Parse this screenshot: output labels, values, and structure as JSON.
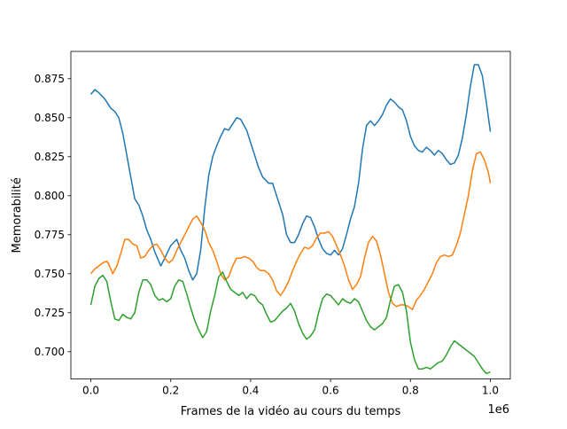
{
  "chart_data": {
    "type": "line",
    "title": "",
    "xlabel": "Frames de la vidéo au cours du temps",
    "ylabel": "Memorabilité",
    "x_offset_label": "1e6",
    "xlim": [
      -0.05,
      1.05
    ],
    "ylim": [
      0.6825,
      0.8925
    ],
    "x_ticks": [
      0.0,
      0.2,
      0.4,
      0.6,
      0.8,
      1.0
    ],
    "x_tick_labels": [
      "0.0",
      "0.2",
      "0.4",
      "0.6",
      "0.8",
      "1.0"
    ],
    "y_ticks": [
      0.7,
      0.725,
      0.75,
      0.775,
      0.8,
      0.825,
      0.85,
      0.875
    ],
    "y_tick_labels": [
      "0.700",
      "0.725",
      "0.750",
      "0.775",
      "0.800",
      "0.825",
      "0.850",
      "0.875"
    ],
    "grid": false,
    "series": [
      {
        "color": "#1f77b4",
        "points": [
          [
            0.0,
            0.865
          ],
          [
            0.01,
            0.868
          ],
          [
            0.02,
            0.866
          ],
          [
            0.035,
            0.862
          ],
          [
            0.05,
            0.856
          ],
          [
            0.06,
            0.854
          ],
          [
            0.07,
            0.85
          ],
          [
            0.08,
            0.84
          ],
          [
            0.09,
            0.826
          ],
          [
            0.1,
            0.812
          ],
          [
            0.11,
            0.798
          ],
          [
            0.12,
            0.794
          ],
          [
            0.13,
            0.787
          ],
          [
            0.14,
            0.778
          ],
          [
            0.15,
            0.772
          ],
          [
            0.16,
            0.764
          ],
          [
            0.175,
            0.755
          ],
          [
            0.185,
            0.76
          ],
          [
            0.2,
            0.768
          ],
          [
            0.215,
            0.772
          ],
          [
            0.225,
            0.765
          ],
          [
            0.235,
            0.76
          ],
          [
            0.245,
            0.752
          ],
          [
            0.255,
            0.746
          ],
          [
            0.265,
            0.75
          ],
          [
            0.275,
            0.765
          ],
          [
            0.285,
            0.792
          ],
          [
            0.295,
            0.813
          ],
          [
            0.305,
            0.825
          ],
          [
            0.315,
            0.832
          ],
          [
            0.325,
            0.838
          ],
          [
            0.335,
            0.843
          ],
          [
            0.345,
            0.842
          ],
          [
            0.355,
            0.846
          ],
          [
            0.365,
            0.85
          ],
          [
            0.375,
            0.849
          ],
          [
            0.39,
            0.842
          ],
          [
            0.4,
            0.834
          ],
          [
            0.41,
            0.826
          ],
          [
            0.42,
            0.818
          ],
          [
            0.43,
            0.812
          ],
          [
            0.445,
            0.808
          ],
          [
            0.455,
            0.808
          ],
          [
            0.465,
            0.8
          ],
          [
            0.48,
            0.788
          ],
          [
            0.49,
            0.775
          ],
          [
            0.5,
            0.77
          ],
          [
            0.51,
            0.77
          ],
          [
            0.52,
            0.775
          ],
          [
            0.53,
            0.782
          ],
          [
            0.54,
            0.787
          ],
          [
            0.55,
            0.786
          ],
          [
            0.56,
            0.78
          ],
          [
            0.57,
            0.772
          ],
          [
            0.58,
            0.766
          ],
          [
            0.59,
            0.763
          ],
          [
            0.6,
            0.762
          ],
          [
            0.61,
            0.765
          ],
          [
            0.62,
            0.762
          ],
          [
            0.63,
            0.766
          ],
          [
            0.64,
            0.775
          ],
          [
            0.65,
            0.785
          ],
          [
            0.66,
            0.793
          ],
          [
            0.67,
            0.808
          ],
          [
            0.68,
            0.83
          ],
          [
            0.69,
            0.845
          ],
          [
            0.7,
            0.848
          ],
          [
            0.71,
            0.845
          ],
          [
            0.72,
            0.848
          ],
          [
            0.73,
            0.852
          ],
          [
            0.74,
            0.858
          ],
          [
            0.75,
            0.862
          ],
          [
            0.76,
            0.86
          ],
          [
            0.77,
            0.857
          ],
          [
            0.78,
            0.855
          ],
          [
            0.79,
            0.848
          ],
          [
            0.8,
            0.838
          ],
          [
            0.81,
            0.832
          ],
          [
            0.82,
            0.829
          ],
          [
            0.83,
            0.828
          ],
          [
            0.84,
            0.831
          ],
          [
            0.85,
            0.829
          ],
          [
            0.86,
            0.826
          ],
          [
            0.87,
            0.829
          ],
          [
            0.88,
            0.827
          ],
          [
            0.89,
            0.823
          ],
          [
            0.9,
            0.82
          ],
          [
            0.91,
            0.821
          ],
          [
            0.92,
            0.826
          ],
          [
            0.93,
            0.837
          ],
          [
            0.94,
            0.852
          ],
          [
            0.95,
            0.87
          ],
          [
            0.96,
            0.884
          ],
          [
            0.97,
            0.884
          ],
          [
            0.98,
            0.877
          ],
          [
            0.99,
            0.86
          ],
          [
            1.0,
            0.841
          ]
        ]
      },
      {
        "color": "#ff7f0e",
        "points": [
          [
            0.0,
            0.75
          ],
          [
            0.01,
            0.753
          ],
          [
            0.02,
            0.755
          ],
          [
            0.03,
            0.757
          ],
          [
            0.04,
            0.758
          ],
          [
            0.045,
            0.756
          ],
          [
            0.055,
            0.75
          ],
          [
            0.065,
            0.755
          ],
          [
            0.075,
            0.763
          ],
          [
            0.085,
            0.772
          ],
          [
            0.095,
            0.772
          ],
          [
            0.105,
            0.769
          ],
          [
            0.115,
            0.768
          ],
          [
            0.125,
            0.76
          ],
          [
            0.135,
            0.761
          ],
          [
            0.145,
            0.765
          ],
          [
            0.155,
            0.768
          ],
          [
            0.165,
            0.769
          ],
          [
            0.175,
            0.765
          ],
          [
            0.185,
            0.76
          ],
          [
            0.195,
            0.757
          ],
          [
            0.205,
            0.759
          ],
          [
            0.215,
            0.765
          ],
          [
            0.225,
            0.77
          ],
          [
            0.235,
            0.775
          ],
          [
            0.245,
            0.78
          ],
          [
            0.255,
            0.785
          ],
          [
            0.265,
            0.787
          ],
          [
            0.275,
            0.783
          ],
          [
            0.285,
            0.778
          ],
          [
            0.295,
            0.77
          ],
          [
            0.305,
            0.765
          ],
          [
            0.315,
            0.758
          ],
          [
            0.325,
            0.75
          ],
          [
            0.335,
            0.746
          ],
          [
            0.345,
            0.748
          ],
          [
            0.355,
            0.755
          ],
          [
            0.365,
            0.76
          ],
          [
            0.375,
            0.76
          ],
          [
            0.385,
            0.761
          ],
          [
            0.395,
            0.76
          ],
          [
            0.405,
            0.758
          ],
          [
            0.415,
            0.754
          ],
          [
            0.425,
            0.752
          ],
          [
            0.435,
            0.752
          ],
          [
            0.445,
            0.75
          ],
          [
            0.455,
            0.746
          ],
          [
            0.465,
            0.739
          ],
          [
            0.475,
            0.736
          ],
          [
            0.485,
            0.74
          ],
          [
            0.495,
            0.745
          ],
          [
            0.505,
            0.752
          ],
          [
            0.515,
            0.758
          ],
          [
            0.525,
            0.763
          ],
          [
            0.535,
            0.767
          ],
          [
            0.545,
            0.766
          ],
          [
            0.555,
            0.768
          ],
          [
            0.565,
            0.773
          ],
          [
            0.575,
            0.776
          ],
          [
            0.585,
            0.776
          ],
          [
            0.595,
            0.777
          ],
          [
            0.605,
            0.774
          ],
          [
            0.615,
            0.768
          ],
          [
            0.625,
            0.762
          ],
          [
            0.635,
            0.755
          ],
          [
            0.645,
            0.746
          ],
          [
            0.655,
            0.74
          ],
          [
            0.665,
            0.743
          ],
          [
            0.675,
            0.748
          ],
          [
            0.685,
            0.76
          ],
          [
            0.695,
            0.77
          ],
          [
            0.705,
            0.774
          ],
          [
            0.715,
            0.771
          ],
          [
            0.725,
            0.762
          ],
          [
            0.735,
            0.75
          ],
          [
            0.745,
            0.738
          ],
          [
            0.755,
            0.731
          ],
          [
            0.765,
            0.729
          ],
          [
            0.775,
            0.73
          ],
          [
            0.785,
            0.73
          ],
          [
            0.795,
            0.729
          ],
          [
            0.805,
            0.727
          ],
          [
            0.815,
            0.733
          ],
          [
            0.825,
            0.736
          ],
          [
            0.835,
            0.74
          ],
          [
            0.845,
            0.745
          ],
          [
            0.855,
            0.75
          ],
          [
            0.865,
            0.757
          ],
          [
            0.875,
            0.761
          ],
          [
            0.885,
            0.762
          ],
          [
            0.895,
            0.761
          ],
          [
            0.905,
            0.762
          ],
          [
            0.915,
            0.768
          ],
          [
            0.925,
            0.776
          ],
          [
            0.935,
            0.788
          ],
          [
            0.945,
            0.8
          ],
          [
            0.955,
            0.816
          ],
          [
            0.965,
            0.827
          ],
          [
            0.975,
            0.828
          ],
          [
            0.985,
            0.823
          ],
          [
            0.995,
            0.815
          ],
          [
            1.0,
            0.808
          ]
        ]
      },
      {
        "color": "#2ca02c",
        "points": [
          [
            0.0,
            0.73
          ],
          [
            0.01,
            0.742
          ],
          [
            0.02,
            0.747
          ],
          [
            0.03,
            0.749
          ],
          [
            0.04,
            0.745
          ],
          [
            0.05,
            0.732
          ],
          [
            0.06,
            0.721
          ],
          [
            0.07,
            0.72
          ],
          [
            0.08,
            0.724
          ],
          [
            0.09,
            0.722
          ],
          [
            0.1,
            0.721
          ],
          [
            0.11,
            0.725
          ],
          [
            0.12,
            0.738
          ],
          [
            0.13,
            0.746
          ],
          [
            0.14,
            0.746
          ],
          [
            0.15,
            0.743
          ],
          [
            0.16,
            0.736
          ],
          [
            0.17,
            0.733
          ],
          [
            0.18,
            0.734
          ],
          [
            0.19,
            0.732
          ],
          [
            0.2,
            0.734
          ],
          [
            0.21,
            0.742
          ],
          [
            0.22,
            0.746
          ],
          [
            0.23,
            0.745
          ],
          [
            0.24,
            0.737
          ],
          [
            0.25,
            0.728
          ],
          [
            0.26,
            0.72
          ],
          [
            0.27,
            0.714
          ],
          [
            0.28,
            0.709
          ],
          [
            0.29,
            0.713
          ],
          [
            0.3,
            0.726
          ],
          [
            0.31,
            0.736
          ],
          [
            0.32,
            0.748
          ],
          [
            0.33,
            0.751
          ],
          [
            0.34,
            0.745
          ],
          [
            0.35,
            0.74
          ],
          [
            0.36,
            0.738
          ],
          [
            0.37,
            0.736
          ],
          [
            0.38,
            0.738
          ],
          [
            0.39,
            0.734
          ],
          [
            0.4,
            0.737
          ],
          [
            0.41,
            0.736
          ],
          [
            0.42,
            0.732
          ],
          [
            0.43,
            0.73
          ],
          [
            0.44,
            0.724
          ],
          [
            0.45,
            0.719
          ],
          [
            0.46,
            0.72
          ],
          [
            0.47,
            0.723
          ],
          [
            0.48,
            0.726
          ],
          [
            0.49,
            0.728
          ],
          [
            0.5,
            0.731
          ],
          [
            0.51,
            0.726
          ],
          [
            0.52,
            0.718
          ],
          [
            0.53,
            0.712
          ],
          [
            0.54,
            0.708
          ],
          [
            0.55,
            0.71
          ],
          [
            0.56,
            0.714
          ],
          [
            0.57,
            0.725
          ],
          [
            0.58,
            0.734
          ],
          [
            0.59,
            0.737
          ],
          [
            0.6,
            0.736
          ],
          [
            0.61,
            0.733
          ],
          [
            0.62,
            0.73
          ],
          [
            0.63,
            0.734
          ],
          [
            0.64,
            0.732
          ],
          [
            0.65,
            0.731
          ],
          [
            0.66,
            0.734
          ],
          [
            0.67,
            0.732
          ],
          [
            0.68,
            0.726
          ],
          [
            0.69,
            0.72
          ],
          [
            0.7,
            0.716
          ],
          [
            0.71,
            0.714
          ],
          [
            0.72,
            0.716
          ],
          [
            0.73,
            0.718
          ],
          [
            0.74,
            0.722
          ],
          [
            0.75,
            0.733
          ],
          [
            0.76,
            0.742
          ],
          [
            0.77,
            0.743
          ],
          [
            0.78,
            0.738
          ],
          [
            0.79,
            0.726
          ],
          [
            0.8,
            0.706
          ],
          [
            0.81,
            0.695
          ],
          [
            0.82,
            0.689
          ],
          [
            0.83,
            0.689
          ],
          [
            0.84,
            0.69
          ],
          [
            0.85,
            0.689
          ],
          [
            0.86,
            0.691
          ],
          [
            0.87,
            0.693
          ],
          [
            0.88,
            0.694
          ],
          [
            0.89,
            0.698
          ],
          [
            0.9,
            0.703
          ],
          [
            0.91,
            0.707
          ],
          [
            0.92,
            0.705
          ],
          [
            0.93,
            0.703
          ],
          [
            0.94,
            0.701
          ],
          [
            0.95,
            0.699
          ],
          [
            0.96,
            0.697
          ],
          [
            0.97,
            0.693
          ],
          [
            0.98,
            0.689
          ],
          [
            0.99,
            0.686
          ],
          [
            1.0,
            0.687
          ]
        ]
      }
    ]
  }
}
